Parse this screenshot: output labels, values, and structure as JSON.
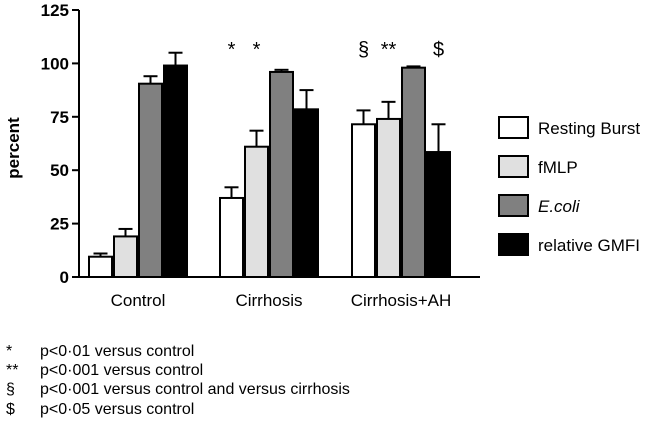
{
  "chart_data": {
    "type": "bar",
    "ylabel": "percent",
    "ylim": [
      0,
      125
    ],
    "yticks": [
      0,
      25,
      50,
      75,
      100,
      125
    ],
    "categories": [
      "Control",
      "Cirrhosis",
      "Cirrhosis+AH"
    ],
    "series": [
      {
        "name": "Resting Burst",
        "fill": "#ffffff",
        "values": [
          9.5,
          37,
          71.5
        ],
        "errors": [
          1.5,
          5,
          6.5
        ]
      },
      {
        "name": "fMLP",
        "fill": "#e0e0e0",
        "values": [
          19,
          61,
          74
        ],
        "errors": [
          3.5,
          7.5,
          8
        ]
      },
      {
        "name": "E.coli",
        "italic": true,
        "fill": "#808080",
        "values": [
          90.5,
          96,
          98
        ],
        "errors": [
          3.5,
          1,
          0.6
        ]
      },
      {
        "name": "relative GMFI",
        "fill": "#000000",
        "values": [
          99,
          78.5,
          58.5
        ],
        "errors": [
          6,
          9,
          13
        ]
      }
    ],
    "annotations": [
      {
        "text": "*",
        "category": 1,
        "series": 0
      },
      {
        "text": "*",
        "category": 1,
        "series": 1
      },
      {
        "text": "§",
        "category": 2,
        "series": 0
      },
      {
        "text": "**",
        "category": 2,
        "series": 1
      },
      {
        "text": "$",
        "category": 2,
        "series": 3
      }
    ],
    "legend_position": "right"
  },
  "footnotes": [
    {
      "symbol": "*",
      "text": "p<0·01 versus control"
    },
    {
      "symbol": "**",
      "text": "p<0·001 versus control"
    },
    {
      "symbol": "§",
      "text": "p<0·001 versus control and versus cirrhosis"
    },
    {
      "symbol": "$",
      "text": "p<0·05 versus control"
    }
  ]
}
